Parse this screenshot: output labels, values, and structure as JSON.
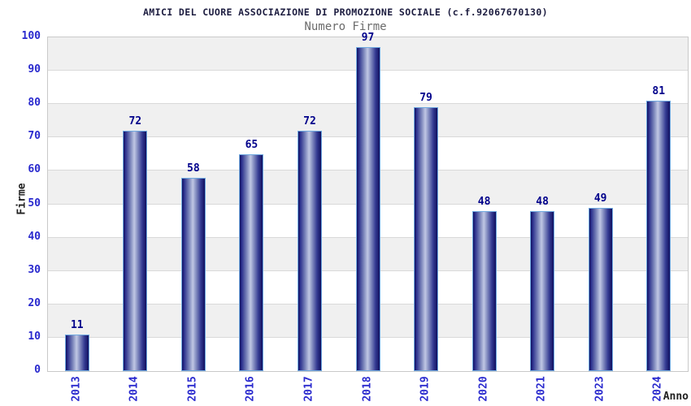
{
  "header": {
    "title": "AMICI DEL CUORE ASSOCIAZIONE DI PROMOZIONE SOCIALE (c.f.92067670130)",
    "subtitle": "Numero Firme"
  },
  "chart_data": {
    "type": "bar",
    "title": "AMICI DEL CUORE ASSOCIAZIONE DI PROMOZIONE SOCIALE (c.f.92067670130)",
    "subtitle": "Numero Firme",
    "categories": [
      "2013",
      "2014",
      "2015",
      "2016",
      "2017",
      "2018",
      "2019",
      "2020",
      "2021",
      "2023",
      "2024"
    ],
    "values": [
      11,
      72,
      58,
      65,
      72,
      97,
      79,
      48,
      48,
      49,
      81
    ],
    "xlabel": "Anno",
    "ylabel": "Firme",
    "ylim": [
      0,
      100
    ],
    "ytick_step": 10,
    "yticks": [
      0,
      10,
      20,
      30,
      40,
      50,
      60,
      70,
      80,
      90,
      100
    ],
    "grid": true,
    "band_alternation": true,
    "legend": null
  },
  "colors": {
    "title": "#1d1d40",
    "subtitle": "#6b6b6b",
    "axis_title": "#222222",
    "tick_label": "#2a2ace",
    "value_label": "#00008b",
    "band_gray": "#f0f0f0",
    "band_white": "#ffffff",
    "gridline": "#d9d9d9",
    "plot_border": "#c9c9c9",
    "bar_border": "#6fa9e0",
    "bar_edge": "#10105f",
    "bar_mid": "#2a2e8c",
    "bar_highlight": "#c0c7e4",
    "background": "#ffffff"
  }
}
